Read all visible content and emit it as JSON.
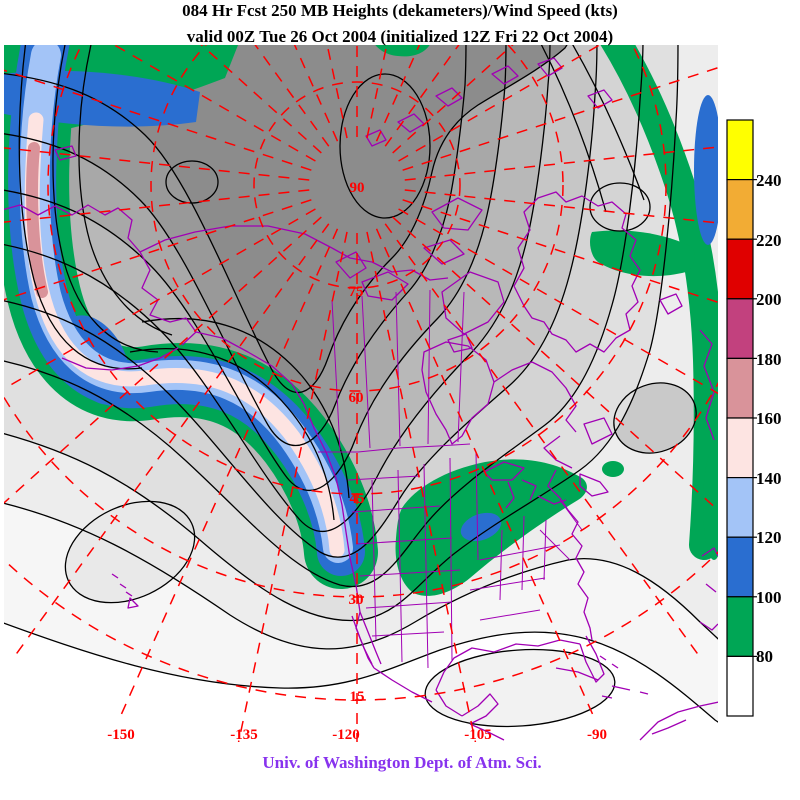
{
  "header": {
    "title_line1": "084 Hr Fcst 250 MB Heights (dekameters)/Wind Speed (kts)",
    "title_line2": "valid 00Z Tue 26 Oct 2004 (initialized 12Z Fri 22 Oct 2004)"
  },
  "footer": {
    "credit": "Univ. of Washington Dept. of Atm. Sci."
  },
  "colorbar": {
    "description": "wind speed scale (kts)",
    "ticks": [
      "240",
      "220",
      "200",
      "180",
      "160",
      "140",
      "120",
      "100",
      "80"
    ],
    "colors": [
      "#ffff00",
      "#f2ac34",
      "#e00000",
      "#c2417e",
      "#d9939a",
      "#fde4e2",
      "#a3c4f7",
      "#2a6ed0",
      "#00a655",
      "#ffffff"
    ]
  },
  "graticule": {
    "lat_labels": [
      "90",
      "75",
      "60",
      "45",
      "30",
      "15"
    ],
    "lon_labels": [
      "-150",
      "-135",
      "-120",
      "-105",
      "-90"
    ],
    "line_color": "#ff0000"
  },
  "map": {
    "contour_color": "#000000",
    "coastline_color": "#a100b4",
    "height_fill_grays": [
      "#ffffff",
      "#f6f6f6",
      "#ededed",
      "#e0e0e0",
      "#d4d4d4",
      "#c6c6c6",
      "#b8b8b8",
      "#a8a8a8",
      "#999999",
      "#8c8c8c"
    ]
  }
}
